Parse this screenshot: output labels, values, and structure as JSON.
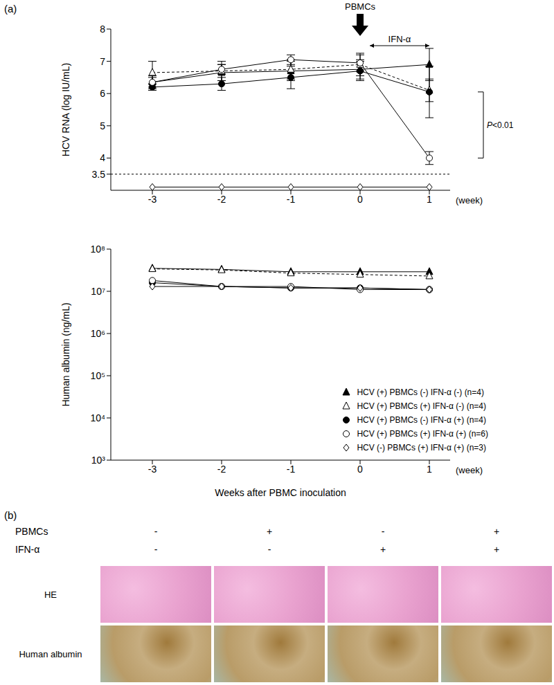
{
  "panel_labels": [
    "(a)",
    "(b)"
  ],
  "chart_data": [
    {
      "type": "line",
      "y_label": "HCV RNA (log IU/mL)",
      "x_unit_label": "(week)",
      "x": [
        -3,
        -2,
        -1,
        0,
        1
      ],
      "xlim": [
        -3.6,
        1.3
      ],
      "xticks": [
        -3,
        -2,
        -1,
        0,
        1
      ],
      "ylim": [
        3,
        8
      ],
      "yticks": [
        3.5,
        4,
        5,
        6,
        7,
        8
      ],
      "reference_lines": [
        3.5
      ],
      "annotations": [
        {
          "text": "PBMCs",
          "x": 0
        }
      ],
      "range_arrows": [
        {
          "text": "IFN-α",
          "x": [
            0,
            1
          ]
        }
      ],
      "significance": [
        {
          "text": "P<0.01",
          "y": [
            4,
            6.05
          ]
        }
      ],
      "series": [
        {
          "marker": "diamond-open",
          "line_style": "solid",
          "color": "#000000",
          "values": [
            3.1,
            3.1,
            3.1,
            3.1,
            3.1
          ]
        },
        {
          "marker": "triangle",
          "line_style": "solid",
          "color": "#000000",
          "values": [
            6.35,
            6.65,
            6.7,
            6.75,
            6.9
          ],
          "errors": [
            0.2,
            0.25,
            0.3,
            0.3,
            0.5
          ]
        },
        {
          "marker": "triangle-open",
          "line_style": "dashed",
          "color": "#000000",
          "values": [
            6.65,
            6.7,
            6.75,
            6.9,
            6.1
          ],
          "errors": [
            0.35,
            0.3,
            0.3,
            0.35,
            0.35
          ]
        },
        {
          "marker": "circle",
          "line_style": "solid",
          "color": "#000000",
          "values": [
            6.2,
            6.3,
            6.5,
            6.7,
            6.05
          ],
          "errors": [
            0.1,
            0.2,
            0.35,
            0.3,
            0.8
          ]
        },
        {
          "marker": "circle-open",
          "line_style": "solid",
          "color": "#000000",
          "values": [
            6.35,
            6.75,
            7.05,
            6.95,
            4.0
          ],
          "errors": [
            0.15,
            0.15,
            0.15,
            0.25,
            0.2
          ]
        }
      ]
    },
    {
      "type": "line",
      "log": "y",
      "y_label": "Human albumin (ng/mL)",
      "x_label": "Weeks after PBMC inoculation",
      "x_unit_label": "(week)",
      "x": [
        -3,
        -2,
        -1,
        0,
        1
      ],
      "xlim": [
        -3.6,
        1.3
      ],
      "xticks": [
        -3,
        -2,
        -1,
        0,
        1
      ],
      "ylim": [
        1000,
        100000000
      ],
      "yticks": [
        {
          "value": 1000,
          "label": "10³"
        },
        {
          "value": 10000,
          "label": "10⁴"
        },
        {
          "value": 100000,
          "label": "10⁵"
        },
        {
          "value": 1000000,
          "label": "10⁶"
        },
        {
          "value": 10000000,
          "label": "10⁷"
        },
        {
          "value": 100000000,
          "label": "10⁸"
        }
      ],
      "legend": "lower right",
      "series": [
        {
          "name": "HCV (+) PBMCs (-) IFN-α (-) (n=4)",
          "marker": "triangle",
          "line_style": "solid",
          "color": "#000000",
          "values": [
            35000000,
            33000000,
            29000000,
            29000000,
            29000000
          ]
        },
        {
          "name": "HCV (+) PBMCs (+) IFN-α (-) (n=4)",
          "marker": "triangle-open",
          "line_style": "dashed",
          "color": "#000000",
          "values": [
            34000000,
            32000000,
            27000000,
            25000000,
            23000000
          ]
        },
        {
          "name": "HCV (+) PBMCs (-) IFN-α (+) (n=4)",
          "marker": "circle",
          "line_style": "solid",
          "color": "#000000",
          "values": [
            16000000,
            13000000,
            12000000,
            12000000,
            11000000
          ]
        },
        {
          "name": "HCV (+) PBMCs (+) IFN-α (+) (n=6)",
          "marker": "circle-open",
          "line_style": "solid",
          "color": "#000000",
          "values": [
            18000000,
            13000000,
            13000000,
            11000000,
            11000000
          ]
        },
        {
          "name": "HCV (-) PBMCs (+) IFN-α (+) (n=3)",
          "marker": "diamond-open",
          "line_style": "solid",
          "color": "#000000",
          "values": [
            13000000,
            13000000,
            12000000,
            12000000,
            11000000
          ]
        }
      ]
    }
  ],
  "panel_b": {
    "conditions": [
      {
        "label": "PBMCs",
        "signs": [
          "-",
          "+",
          "-",
          "+"
        ]
      },
      {
        "label": "IFN-α",
        "signs": [
          "-",
          "-",
          "+",
          "+"
        ]
      }
    ],
    "stains": [
      "HE",
      "Human albumin"
    ]
  }
}
